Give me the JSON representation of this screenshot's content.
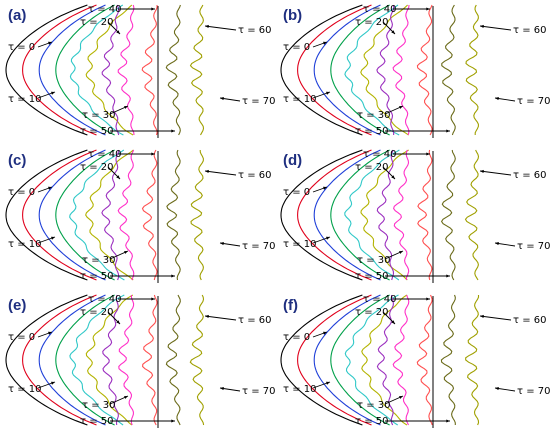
{
  "figure": {
    "panels": [
      {
        "letter": "(a)"
      },
      {
        "letter": "(b)"
      },
      {
        "letter": "(c)"
      },
      {
        "letter": "(d)"
      },
      {
        "letter": "(e)"
      },
      {
        "letter": "(f)"
      }
    ],
    "tau_labels": [
      "τ = 0",
      "τ = 10",
      "τ = 20",
      "τ = 30",
      "τ = 40",
      "τ = 50",
      "τ = 60",
      "τ = 70"
    ],
    "curve_colors": [
      "#000000",
      "#e0001b",
      "#1f3fd8",
      "#00a04a",
      "#30c8c8",
      "#b3b300",
      "#9b2fbf",
      "#ff30c8",
      "#ff5050",
      "#6b6b1a",
      "#a0a000"
    ]
  }
}
